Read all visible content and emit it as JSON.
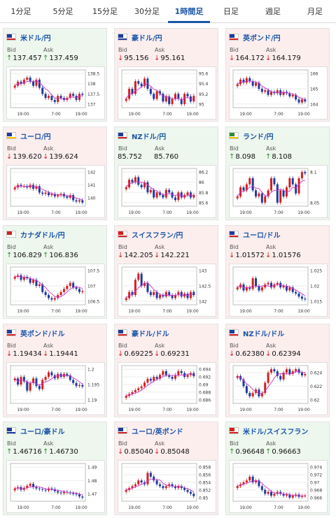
{
  "tabs": [
    {
      "label": "1分足",
      "active": false
    },
    {
      "label": "5分足",
      "active": false
    },
    {
      "label": "15分足",
      "active": false
    },
    {
      "label": "30分足",
      "active": false
    },
    {
      "label": "1時間足",
      "active": true
    },
    {
      "label": "日足",
      "active": false
    },
    {
      "label": "週足",
      "active": false
    },
    {
      "label": "月足",
      "active": false
    }
  ],
  "labels": {
    "bid": "Bid",
    "ask": "Ask"
  },
  "colors": {
    "up": "#2e8b2e",
    "down": "#d32020",
    "bull": "#d22020",
    "bear": "#1f3a9e",
    "ma": "#cc33cc"
  },
  "pairs": [
    {
      "name": "米ドル/円",
      "flag": [
        "#1f3a9e",
        "#d32020"
      ],
      "trend": "up",
      "bid": "137.457",
      "ask": "137.459",
      "bid_dir": "up",
      "ask_dir": "up",
      "ticks": [
        "138.5",
        "138",
        "137.5",
        "137"
      ],
      "xlabels": [
        "19:00",
        "7:00",
        "19:00"
      ],
      "close": [
        137.9,
        138.1,
        138.0,
        138.2,
        138.3,
        138.1,
        137.9,
        138.2,
        137.8,
        137.5,
        137.3,
        137.4,
        137.2,
        137.1,
        137.4,
        137.3,
        137.2,
        137.3,
        137.5,
        137.4,
        137.2,
        137.5,
        137.45
      ]
    },
    {
      "name": "豪ドル/円",
      "flag": [
        "#1f3a9e",
        "#1f3a9e"
      ],
      "trend": "down",
      "bid": "95.156",
      "ask": "95.161",
      "bid_dir": "down",
      "ask_dir": "down",
      "ticks": [
        "95.6",
        "95.4",
        "95.2",
        "95"
      ],
      "xlabels": [
        "19:00",
        "7:00",
        "19:00"
      ],
      "close": [
        95.1,
        95.3,
        95.2,
        95.45,
        95.4,
        95.35,
        95.5,
        95.3,
        95.2,
        95.1,
        95.25,
        95.2,
        95.05,
        95.15,
        95.0,
        95.1,
        95.2,
        95.1,
        95.0,
        95.2,
        95.15,
        95.05,
        95.16
      ]
    },
    {
      "name": "英ポンド/円",
      "flag": [
        "#1f3a9e",
        "#d32020"
      ],
      "trend": "down",
      "bid": "164.172",
      "ask": "164.179",
      "bid_dir": "down",
      "ask_dir": "down",
      "ticks": [
        "166",
        "165",
        "164"
      ],
      "xlabels": [
        "19:00",
        "7:00",
        "19:00"
      ],
      "close": [
        165.3,
        165.6,
        165.4,
        165.7,
        165.5,
        165.2,
        165.4,
        165.0,
        164.8,
        164.9,
        164.6,
        164.8,
        164.7,
        164.9,
        164.6,
        164.8,
        164.7,
        164.5,
        164.6,
        164.3,
        164.1,
        164.3,
        164.17
      ]
    },
    {
      "name": "ユーロ/円",
      "flag": [
        "#1f3a9e",
        "#f2c200"
      ],
      "trend": "down",
      "bid": "139.620",
      "ask": "139.624",
      "bid_dir": "down",
      "ask_dir": "down",
      "ticks": [
        "142",
        "141",
        "140"
      ],
      "xlabels": [
        "19:00",
        "7:00",
        "19:00"
      ],
      "close": [
        140.8,
        141.0,
        140.9,
        140.9,
        140.8,
        141.0,
        140.7,
        140.9,
        140.4,
        140.3,
        140.4,
        140.2,
        140.3,
        140.1,
        140.2,
        140.3,
        140.1,
        140.0,
        140.2,
        139.8,
        139.7,
        139.8,
        139.62
      ]
    },
    {
      "name": "NZドル/円",
      "flag": [
        "#1f3a9e",
        "#d32020"
      ],
      "trend": "up",
      "bid": "85.752",
      "ask": "85.760",
      "bid_dir": "flat",
      "ask_dir": "flat",
      "ticks": [
        "86.2",
        "86",
        "85.8",
        "85.6"
      ],
      "xlabels": [
        "19:00",
        "7:00",
        "19:00"
      ],
      "close": [
        85.9,
        86.05,
        86.0,
        86.1,
        85.95,
        85.9,
        86.0,
        85.8,
        85.85,
        85.7,
        85.8,
        85.75,
        85.7,
        85.85,
        85.8,
        85.7,
        85.65,
        85.8,
        85.7,
        85.75,
        85.8,
        85.7,
        85.75
      ]
    },
    {
      "name": "ランド/円",
      "flag": [
        "#2e8b2e",
        "#f2c200"
      ],
      "trend": "up",
      "bid": "8.098",
      "ask": "8.108",
      "bid_dir": "up",
      "ask_dir": "up",
      "ticks": [
        "8.1",
        "8.05"
      ],
      "xlabels": [
        "19:00",
        "7:00",
        "19:00"
      ],
      "close": [
        8.06,
        8.075,
        8.07,
        8.08,
        8.09,
        8.07,
        8.06,
        8.065,
        8.05,
        8.06,
        8.07,
        8.09,
        8.08,
        8.05,
        8.07,
        8.06,
        8.075,
        8.09,
        8.08,
        8.065,
        8.09,
        8.1,
        8.098
      ]
    },
    {
      "name": "カナダドル/円",
      "flag": [
        "#d32020",
        "#ffffff"
      ],
      "trend": "up",
      "bid": "106.829",
      "ask": "106.836",
      "bid_dir": "up",
      "ask_dir": "up",
      "ticks": [
        "107.5",
        "107",
        "106.5"
      ],
      "xlabels": [
        "19:00",
        "7:00",
        "19:00"
      ],
      "close": [
        107.3,
        107.35,
        107.2,
        107.3,
        107.25,
        107.1,
        107.2,
        107.0,
        107.05,
        106.8,
        106.7,
        106.6,
        106.55,
        106.6,
        106.7,
        106.8,
        106.9,
        107.0,
        107.1,
        106.95,
        106.9,
        106.8,
        106.83
      ]
    },
    {
      "name": "スイスフラン/円",
      "flag": [
        "#d32020",
        "#d32020"
      ],
      "trend": "down",
      "bid": "142.205",
      "ask": "142.221",
      "bid_dir": "down",
      "ask_dir": "down",
      "ticks": [
        "143",
        "142.5",
        "142"
      ],
      "xlabels": [
        "19:00",
        "7:00",
        "19:00"
      ],
      "close": [
        142.1,
        142.3,
        142.2,
        142.7,
        142.9,
        142.5,
        142.6,
        142.3,
        142.2,
        142.3,
        142.1,
        142.2,
        142.15,
        142.3,
        142.2,
        142.1,
        142.2,
        142.3,
        142.15,
        142.25,
        142.1,
        142.3,
        142.2
      ]
    },
    {
      "name": "ユーロ/ドル",
      "flag": [
        "#1f3a9e",
        "#d32020"
      ],
      "trend": "down",
      "bid": "1.01572",
      "ask": "1.01576",
      "bid_dir": "down",
      "ask_dir": "down",
      "ticks": [
        "1.025",
        "1.02",
        "1.015"
      ],
      "xlabels": [
        "19:00",
        "7:00",
        "19:00"
      ],
      "close": [
        1.0195,
        1.0205,
        1.0185,
        1.0195,
        1.019,
        1.0225,
        1.02,
        1.0185,
        1.0195,
        1.0205,
        1.021,
        1.0195,
        1.0205,
        1.021,
        1.0195,
        1.02,
        1.0185,
        1.0195,
        1.018,
        1.0175,
        1.0165,
        1.0158,
        1.0157
      ]
    },
    {
      "name": "英ポンド/ドル",
      "flag": [
        "#1f3a9e",
        "#d32020"
      ],
      "trend": "down",
      "bid": "1.19434",
      "ask": "1.19441",
      "bid_dir": "down",
      "ask_dir": "down",
      "ticks": [
        "1.2",
        "1.195",
        "1.19"
      ],
      "xlabels": [
        "19:00",
        "7:00",
        "19:00"
      ],
      "close": [
        1.197,
        1.195,
        1.1975,
        1.196,
        1.193,
        1.1955,
        1.197,
        1.1945,
        1.1935,
        1.1965,
        1.1975,
        1.199,
        1.198,
        1.197,
        1.1985,
        1.1975,
        1.1985,
        1.198,
        1.1965,
        1.1955,
        1.1945,
        1.1948,
        1.1943
      ]
    },
    {
      "name": "豪ドル/ドル",
      "flag": [
        "#1f3a9e",
        "#d32020"
      ],
      "trend": "down",
      "bid": "0.69225",
      "ask": "0.69231",
      "bid_dir": "down",
      "ask_dir": "down",
      "ticks": [
        "0.694",
        "0.692",
        "0.69",
        "0.688",
        "0.686"
      ],
      "xlabels": [
        "19:00",
        "7:00",
        "19:00"
      ],
      "close": [
        0.687,
        0.6875,
        0.688,
        0.6885,
        0.689,
        0.6895,
        0.6905,
        0.6915,
        0.691,
        0.692,
        0.6915,
        0.6925,
        0.6935,
        0.6925,
        0.692,
        0.6915,
        0.6925,
        0.6935,
        0.693,
        0.692,
        0.6925,
        0.693,
        0.6922
      ]
    },
    {
      "name": "NZドル/ドル",
      "flag": [
        "#1f3a9e",
        "#d32020"
      ],
      "trend": "down",
      "bid": "0.62380",
      "ask": "0.62394",
      "bid_dir": "down",
      "ask_dir": "down",
      "ticks": [
        "0.624",
        "0.622",
        "0.62"
      ],
      "xlabels": [
        "19:00",
        "7:00",
        "19:00"
      ],
      "close": [
        0.6235,
        0.623,
        0.622,
        0.621,
        0.6205,
        0.621,
        0.6215,
        0.6205,
        0.621,
        0.6225,
        0.624,
        0.6245,
        0.6242,
        0.6235,
        0.623,
        0.624,
        0.6245,
        0.6238,
        0.6242,
        0.6245,
        0.624,
        0.6236,
        0.6238
      ]
    },
    {
      "name": "ユーロ/豪ドル",
      "flag": [
        "#1f3a9e",
        "#1f3a9e"
      ],
      "trend": "up",
      "bid": "1.46716",
      "ask": "1.46730",
      "bid_dir": "up",
      "ask_dir": "up",
      "ticks": [
        "1.49",
        "1.48",
        "1.47"
      ],
      "xlabels": [
        "19:00",
        "7:00",
        "19:00"
      ],
      "close": [
        1.474,
        1.475,
        1.473,
        1.4745,
        1.476,
        1.4775,
        1.475,
        1.474,
        1.4735,
        1.473,
        1.4725,
        1.474,
        1.4735,
        1.472,
        1.471,
        1.4705,
        1.4715,
        1.471,
        1.4705,
        1.47,
        1.4695,
        1.468,
        1.4672
      ]
    },
    {
      "name": "ユーロ/英ポンド",
      "flag": [
        "#1f3a9e",
        "#d32020"
      ],
      "trend": "down",
      "bid": "0.85040",
      "ask": "0.85048",
      "bid_dir": "down",
      "ask_dir": "down",
      "ticks": [
        "0.858",
        "0.856",
        "0.854",
        "0.852",
        "0.85"
      ],
      "xlabels": [
        "19:00",
        "7:00",
        "19:00"
      ],
      "close": [
        0.852,
        0.8525,
        0.853,
        0.8535,
        0.8545,
        0.854,
        0.8535,
        0.8565,
        0.8555,
        0.8545,
        0.8535,
        0.853,
        0.8525,
        0.853,
        0.8535,
        0.853,
        0.8525,
        0.853,
        0.8525,
        0.852,
        0.8515,
        0.851,
        0.8504
      ]
    },
    {
      "name": "米ドル/スイスフラン",
      "flag": [
        "#d32020",
        "#d32020"
      ],
      "trend": "up",
      "bid": "0.96648",
      "ask": "0.96663",
      "bid_dir": "up",
      "ask_dir": "up",
      "ticks": [
        "0.974",
        "0.972",
        "0.97",
        "0.968",
        "0.966"
      ],
      "xlabels": [
        "19:00",
        "7:00",
        "19:00"
      ],
      "close": [
        0.969,
        0.9695,
        0.97,
        0.9705,
        0.9715,
        0.97,
        0.9705,
        0.969,
        0.968,
        0.967,
        0.9675,
        0.9665,
        0.967,
        0.9675,
        0.967,
        0.9665,
        0.9668,
        0.966,
        0.9665,
        0.9668,
        0.9662,
        0.9665,
        0.9665
      ]
    }
  ]
}
